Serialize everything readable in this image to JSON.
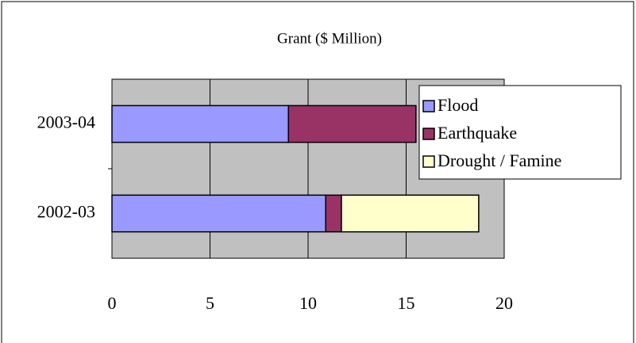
{
  "chart_data": {
    "type": "bar",
    "orientation": "horizontal",
    "stacked": true,
    "title": "Grant ($ Million)",
    "categories": [
      "2002-03",
      "2003-04"
    ],
    "series": [
      {
        "name": "Flood",
        "color": "#9999ff",
        "values": [
          10.9,
          9.0
        ]
      },
      {
        "name": "Earthquake",
        "color": "#993366",
        "values": [
          0.8,
          6.5
        ]
      },
      {
        "name": "Drought / Famine",
        "color": "#ffffcc",
        "values": [
          7.0,
          0
        ]
      }
    ],
    "xlim": [
      0,
      20
    ],
    "xticks": [
      0,
      5,
      10,
      15,
      20
    ],
    "grid": true,
    "legend": "upper right"
  }
}
